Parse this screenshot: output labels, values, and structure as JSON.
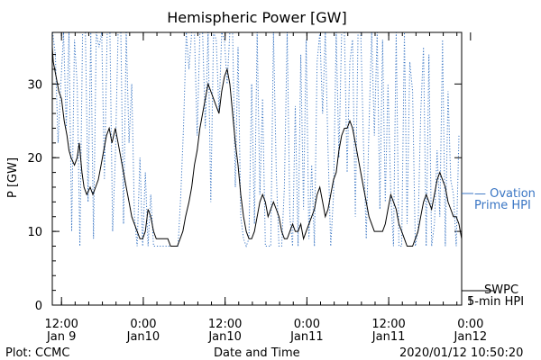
{
  "chart_data": {
    "type": "line",
    "title": "Hemispheric Power [GW]",
    "ylabel": "P [GW]",
    "xlabel": "Date and Time",
    "ylim": [
      0,
      37
    ],
    "xlim": [
      -1.35,
      58.7
    ],
    "yticks": [
      0,
      10,
      20,
      30
    ],
    "x_units": "hours from 2020-01-09 12:00 UT",
    "xticks": [
      {
        "x": 0,
        "line1": "12:00",
        "line2": "Jan 9"
      },
      {
        "x": 12,
        "line1": "0:00",
        "line2": "Jan10"
      },
      {
        "x": 24,
        "line1": "12:00",
        "line2": "Jan10"
      },
      {
        "x": 36,
        "line1": "0:00",
        "line2": "Jan11"
      },
      {
        "x": 48,
        "line1": "12:00",
        "line2": "Jan11"
      },
      {
        "x": 60,
        "line1": "0:00",
        "line2": "Jan12"
      }
    ],
    "series": [
      {
        "name": "SWPC 5-min HPI",
        "legend_line1": "SWPC",
        "legend_line2": "5-min HPI",
        "color": "#000000",
        "style": "solid",
        "x": [
          -1.35,
          -1.2,
          -0.8,
          -0.4,
          0,
          0.4,
          0.8,
          1.1,
          1.4,
          1.9,
          2.3,
          2.6,
          3.0,
          3.3,
          3.7,
          4.2,
          4.6,
          5.0,
          5.4,
          5.8,
          6.2,
          6.6,
          7.0,
          7.4,
          7.9,
          8.3,
          8.7,
          9.1,
          9.5,
          9.9,
          10.3,
          10.7,
          11.1,
          11.5,
          11.9,
          12.3,
          12.7,
          13.1,
          13.5,
          13.9,
          14.3,
          14.8,
          15.2,
          15.6,
          16.0,
          16.5,
          17.0,
          17.4,
          17.8,
          18.2,
          18.7,
          19.1,
          19.5,
          19.9,
          20.3,
          20.7,
          21.1,
          21.5,
          21.9,
          22.3,
          22.7,
          23.1,
          23.5,
          23.9,
          24.3,
          24.7,
          25.1,
          25.5,
          25.9,
          26.3,
          26.7,
          27.1,
          27.5,
          27.9,
          28.3,
          28.7,
          29.1,
          29.5,
          29.9,
          30.3,
          30.7,
          31.1,
          31.5,
          31.9,
          32.3,
          32.7,
          33.1,
          33.5,
          33.9,
          34.3,
          34.7,
          35.1,
          35.5,
          35.9,
          36.3,
          36.7,
          37.1,
          37.5,
          37.9,
          38.3,
          38.7,
          39.1,
          39.5,
          39.9,
          40.3,
          40.7,
          41.1,
          41.5,
          41.9,
          42.3,
          42.7,
          43.1,
          43.5,
          43.9,
          44.3,
          44.7,
          45.1,
          45.5,
          45.9,
          46.3,
          46.7,
          47.1,
          47.5,
          47.9,
          48.3,
          48.7,
          49.1,
          49.5,
          49.9,
          50.3,
          50.7,
          51.1,
          51.5,
          51.9,
          52.3,
          52.7,
          53.1,
          53.5,
          53.9,
          54.3,
          54.7,
          55.1,
          55.5,
          55.9,
          56.3,
          56.7,
          57.1,
          57.5,
          57.9,
          58.3,
          58.7
        ],
        "y": [
          35,
          33,
          31,
          29,
          28,
          25,
          23,
          21,
          20,
          19,
          20,
          22,
          18,
          16,
          15,
          16,
          15,
          16,
          17,
          19,
          21,
          23,
          24,
          22,
          24,
          22,
          20,
          18,
          16,
          14,
          12,
          11,
          10,
          9,
          9,
          10,
          13,
          12,
          10,
          9,
          9,
          9,
          9,
          9,
          8,
          8,
          8,
          9,
          10,
          12,
          14,
          16,
          19,
          21,
          24,
          26,
          28,
          30,
          29,
          28,
          27,
          26,
          29,
          31,
          32,
          30,
          26,
          22,
          19,
          15,
          12,
          10,
          9,
          9,
          10,
          12,
          14,
          15,
          14,
          12,
          13,
          14,
          13,
          12,
          10,
          9,
          9,
          10,
          11,
          10,
          10,
          11,
          9,
          10,
          11,
          12,
          13,
          15,
          16,
          14,
          12,
          13,
          15,
          17,
          18,
          21,
          23,
          24,
          24,
          25,
          24,
          22,
          20,
          18,
          16,
          14,
          12,
          11,
          10,
          10,
          10,
          10,
          11,
          13,
          15,
          14,
          13,
          11,
          10,
          9,
          8,
          8,
          8,
          9,
          10,
          12,
          14,
          15,
          14,
          13,
          15,
          17,
          18,
          17,
          16,
          14,
          13,
          12,
          12,
          11,
          9
        ]
      },
      {
        "name": "Ovation Prime HPI",
        "legend_line1": "— Ovation",
        "legend_line2": "Prime HPI",
        "color": "#3a76c4",
        "style": "dotted",
        "x": [
          -1.3,
          -0.9,
          -0.5,
          -0.1,
          0.3,
          0.7,
          1.1,
          1.5,
          1.9,
          2.3,
          2.7,
          3.1,
          3.5,
          3.9,
          4.3,
          4.7,
          5.1,
          5.5,
          5.9,
          6.3,
          6.7,
          7.1,
          7.5,
          7.9,
          8.3,
          8.7,
          9.1,
          9.5,
          9.9,
          10.3,
          10.7,
          11.1,
          11.5,
          11.9,
          12.3,
          12.7,
          13.1,
          13.5,
          13.9,
          14.3,
          14.7,
          15.1,
          15.5,
          15.9,
          16.3,
          16.7,
          17.1,
          17.5,
          17.9,
          18.3,
          18.7,
          19.1,
          19.5,
          19.9,
          20.3,
          20.7,
          21.1,
          21.5,
          21.9,
          22.3,
          22.7,
          23.1,
          23.5,
          23.9,
          24.3,
          24.7,
          25.1,
          25.5,
          25.9,
          26.3,
          26.7,
          27.1,
          27.5,
          27.9,
          28.3,
          28.7,
          29.1,
          29.5,
          29.9,
          30.3,
          30.7,
          31.1,
          31.5,
          31.9,
          32.3,
          32.7,
          33.1,
          33.5,
          33.9,
          34.3,
          34.7,
          35.1,
          35.5,
          35.9,
          36.3,
          36.7,
          37.1,
          37.5,
          37.9,
          38.3,
          38.7,
          39.1,
          39.5,
          39.9,
          40.3,
          40.7,
          41.1,
          41.5,
          41.9,
          42.3,
          42.7,
          43.1,
          43.5,
          43.9,
          44.3,
          44.7,
          45.1,
          45.5,
          45.9,
          46.3,
          46.7,
          47.1,
          47.5,
          47.9,
          48.3,
          48.7,
          49.1,
          49.5,
          49.9,
          50.3,
          50.7,
          51.1,
          51.5,
          51.9,
          52.3,
          52.7,
          53.1,
          53.5,
          53.9,
          54.3,
          54.7,
          55.1,
          55.5,
          55.9,
          56.3,
          56.7,
          57.1,
          57.5,
          57.9,
          58.3
        ],
        "y": [
          37,
          34,
          22,
          30,
          37,
          24,
          37,
          10,
          36,
          30,
          8,
          37,
          37,
          14,
          37,
          9,
          37,
          35,
          37,
          17,
          37,
          37,
          10,
          20,
          37,
          37,
          11,
          37,
          22,
          30,
          12,
          8,
          20,
          8,
          18,
          8,
          15,
          8,
          8,
          8,
          8,
          8,
          8,
          8,
          8,
          8,
          8,
          15,
          24,
          37,
          32,
          37,
          37,
          23,
          37,
          37,
          24,
          37,
          14,
          37,
          36,
          26,
          37,
          36,
          30,
          37,
          37,
          16,
          35,
          12,
          9,
          8,
          9,
          30,
          11,
          37,
          15,
          28,
          8,
          8,
          8,
          37,
          18,
          8,
          8,
          16,
          37,
          12,
          8,
          27,
          8,
          34,
          13,
          36,
          9,
          19,
          8,
          33,
          37,
          26,
          37,
          21,
          8,
          15,
          37,
          20,
          37,
          37,
          18,
          33,
          36,
          12,
          37,
          37,
          22,
          9,
          24,
          37,
          23,
          37,
          13,
          36,
          14,
          30,
          15,
          8,
          37,
          8,
          8,
          37,
          11,
          33,
          29,
          8,
          10,
          26,
          35,
          8,
          34,
          8,
          11,
          21,
          12,
          36,
          8,
          29,
          17,
          15,
          8,
          23
        ]
      }
    ]
  },
  "labels": {
    "footer_left": "Plot: CCMC",
    "footer_right": "2020/01/12 10:50:20"
  }
}
